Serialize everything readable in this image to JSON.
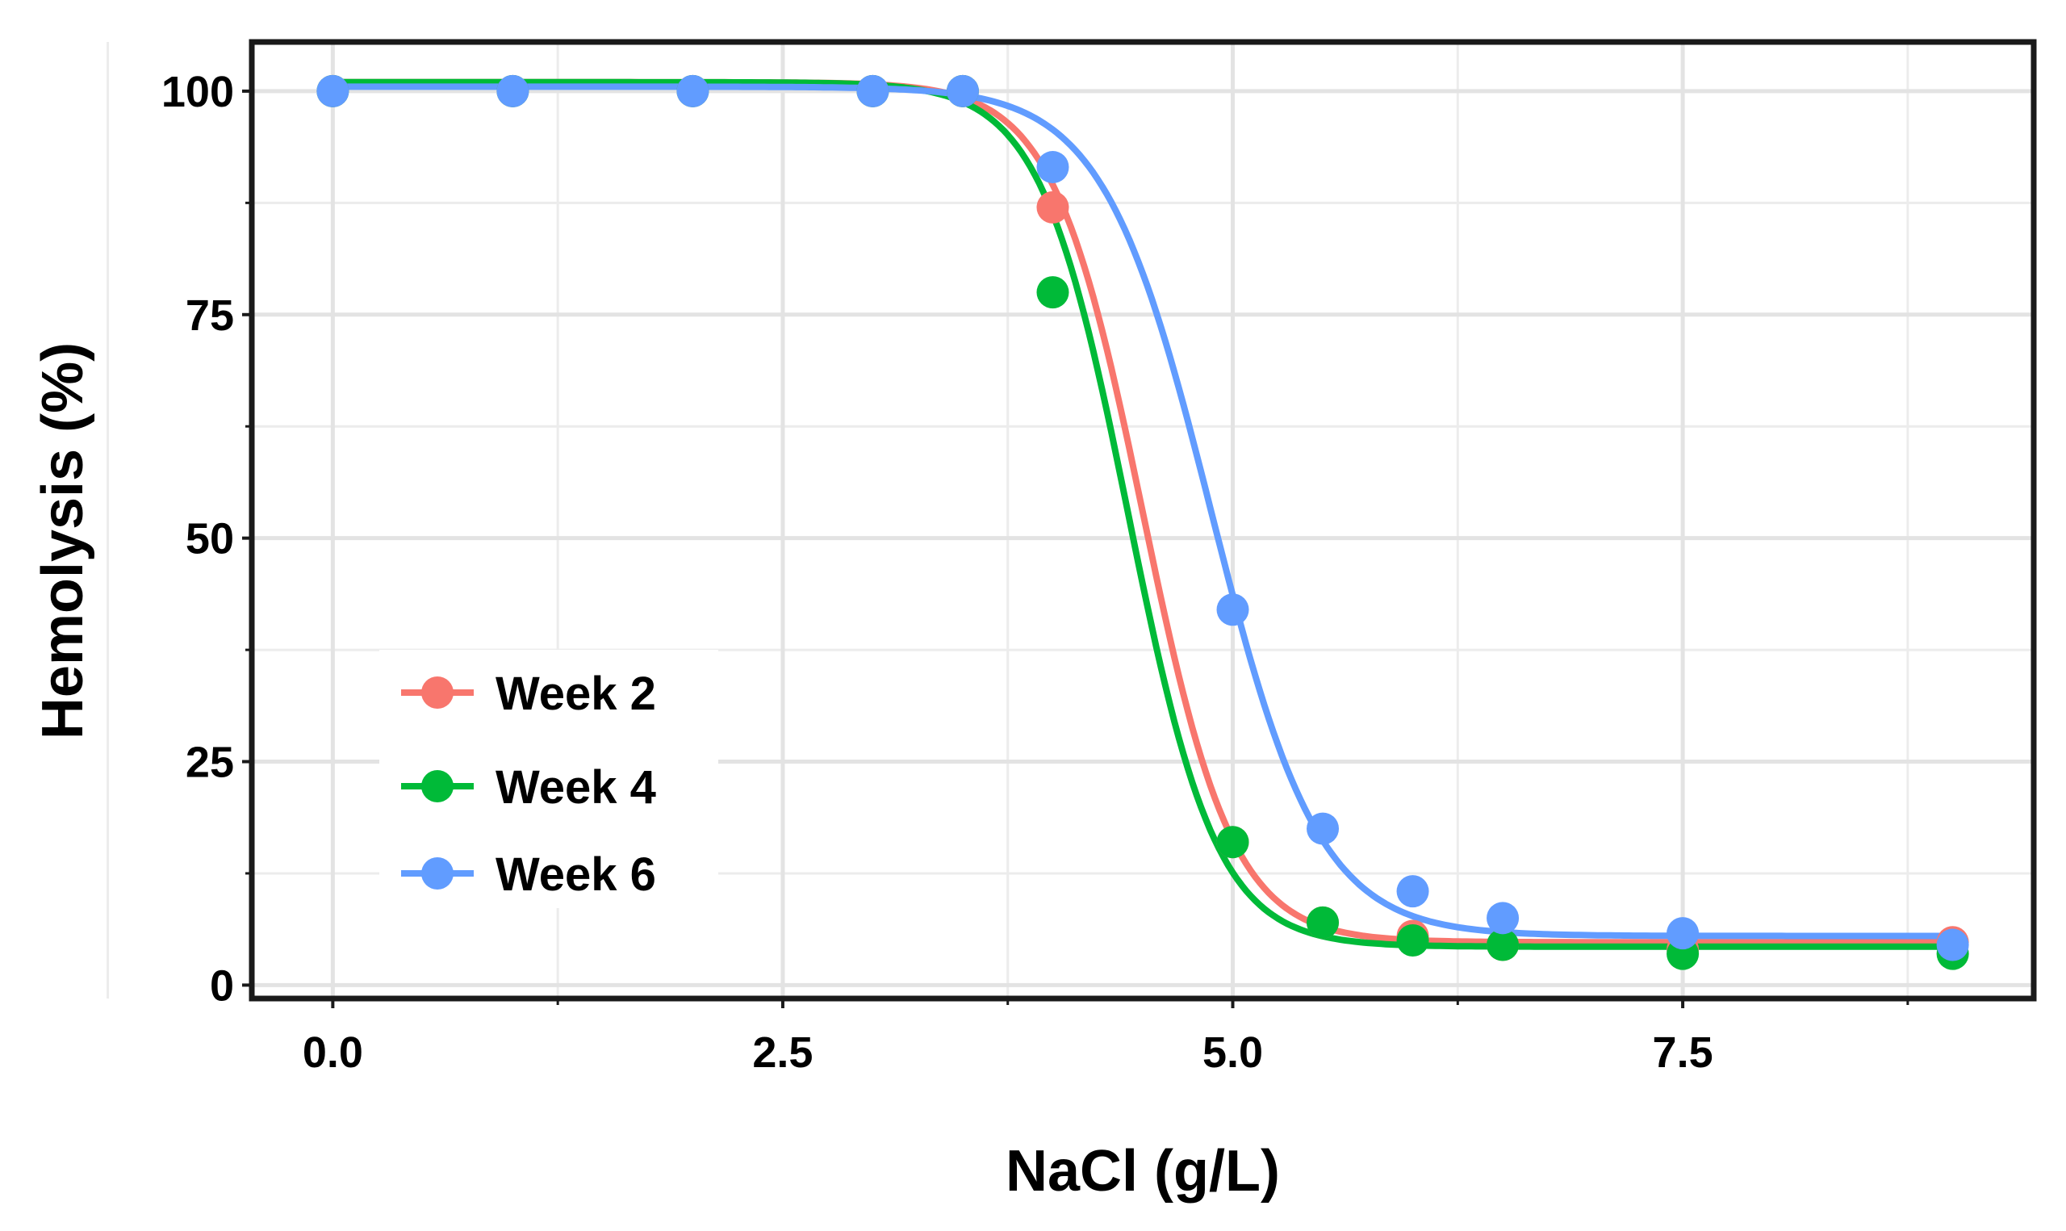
{
  "chart_data": {
    "type": "scatter",
    "title": "",
    "xlabel": "NaCl (g/L)",
    "ylabel": "Hemolysis (%)",
    "xlim": [
      -0.45,
      9.45
    ],
    "ylim": [
      -1.5,
      105.5
    ],
    "x_ticks": [
      0,
      2.5,
      5,
      7.5
    ],
    "x_tick_labels": [
      "0.0",
      "2.5",
      "5.0",
      "7.5"
    ],
    "y_ticks": [
      0,
      25,
      50,
      75,
      100
    ],
    "y_tick_labels": [
      "0",
      "25",
      "50",
      "75",
      "100"
    ],
    "grid": true,
    "legend_position": "bottom-left",
    "series": [
      {
        "name": "Week 2",
        "color": "#F8766D",
        "x": [
          0,
          1,
          2,
          3,
          3.5,
          4,
          5,
          5.5,
          6,
          6.5,
          7.5,
          9
        ],
        "y": [
          100,
          100,
          100,
          100,
          100,
          87,
          16,
          7,
          5.5,
          4.5,
          4,
          4.8
        ],
        "fit": {
          "bottom": 4.8,
          "top": 101,
          "x50": 4.5,
          "slope": 0.25
        }
      },
      {
        "name": "Week 4",
        "color": "#00BA38",
        "x": [
          0,
          1,
          2,
          3,
          3.5,
          4,
          5,
          5.5,
          6,
          6.5,
          7.5,
          9
        ],
        "y": [
          100,
          100,
          100,
          100,
          100,
          77.5,
          16,
          7,
          5,
          4.5,
          3.5,
          3.5
        ],
        "fit": {
          "bottom": 4.3,
          "top": 101,
          "x50": 4.42,
          "slope": 0.245
        }
      },
      {
        "name": "Week 6",
        "color": "#619CFF",
        "x": [
          0,
          1,
          2,
          3,
          3.5,
          4,
          5,
          5.5,
          6,
          6.5,
          7.5,
          9
        ],
        "y": [
          100,
          100,
          100,
          100,
          100,
          91.5,
          42,
          17.5,
          10.5,
          7.5,
          5.8,
          4.5
        ],
        "fit": {
          "bottom": 5.5,
          "top": 100.5,
          "x50": 4.88,
          "slope": 0.3
        }
      }
    ]
  }
}
